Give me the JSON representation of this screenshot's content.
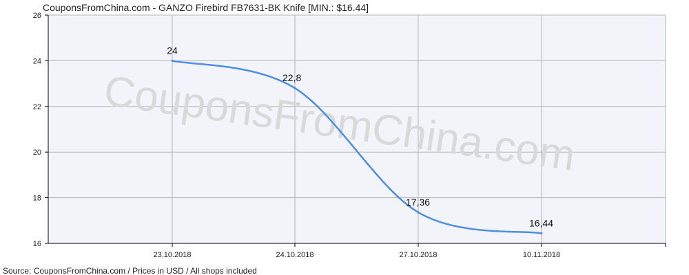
{
  "chart_data": {
    "type": "line",
    "title": "CouponsFromChina.com - GANZO Firebird FB7631-BK Knife [MIN.: $16.44]",
    "source": "Source:  CouponsFromChina.com / Prices in USD / All shops included",
    "watermark": "CouponsFromChina.com",
    "categories": [
      "23.10.2018",
      "24.10.2018",
      "27.10.2018",
      "10.11.2018"
    ],
    "values": [
      24,
      22.8,
      17.36,
      16.44
    ],
    "data_labels": [
      "24",
      "22,8",
      "17,36",
      "16,44"
    ],
    "y_ticks": [
      {
        "value": 16,
        "label": "16"
      },
      {
        "value": 18,
        "label": "18"
      },
      {
        "value": 20,
        "label": "20"
      },
      {
        "value": 22,
        "label": "22"
      },
      {
        "value": 24,
        "label": "24"
      },
      {
        "value": 26,
        "label": "26"
      }
    ],
    "ylim": [
      16,
      26
    ],
    "grid": true,
    "line_color": "#4a8ee6",
    "plot_background": "#f3f3fa"
  }
}
